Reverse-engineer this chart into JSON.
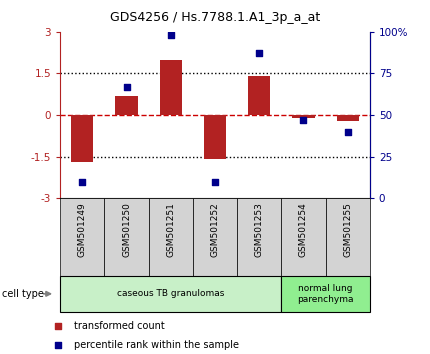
{
  "title": "GDS4256 / Hs.7788.1.A1_3p_a_at",
  "samples": [
    "GSM501249",
    "GSM501250",
    "GSM501251",
    "GSM501252",
    "GSM501253",
    "GSM501254",
    "GSM501255"
  ],
  "red_bars": [
    -1.7,
    0.7,
    2.0,
    -1.6,
    1.4,
    -0.1,
    -0.2
  ],
  "blue_dots": [
    10,
    67,
    98,
    10,
    87,
    47,
    40
  ],
  "ylim_left": [
    -3,
    3
  ],
  "ylim_right": [
    0,
    100
  ],
  "yticks_left": [
    -3,
    -1.5,
    0,
    1.5,
    3
  ],
  "yticks_right": [
    0,
    25,
    50,
    75,
    100
  ],
  "ytick_labels_left": [
    "-3",
    "-1.5",
    "0",
    "1.5",
    "3"
  ],
  "ytick_labels_right": [
    "0",
    "25",
    "50",
    "75",
    "100%"
  ],
  "bar_color": "#b22222",
  "dot_color": "#00008b",
  "zero_line_color": "#cc0000",
  "dotted_line_color": "#000000",
  "cell_type_groups": [
    {
      "label": "caseous TB granulomas",
      "start": 0,
      "end": 5,
      "color": "#c8f0c8"
    },
    {
      "label": "normal lung\nparenchyma",
      "start": 5,
      "end": 7,
      "color": "#90ee90"
    }
  ],
  "legend_red": "transformed count",
  "legend_blue": "percentile rank within the sample",
  "cell_type_label": "cell type",
  "figsize": [
    4.3,
    3.54
  ],
  "dpi": 100
}
